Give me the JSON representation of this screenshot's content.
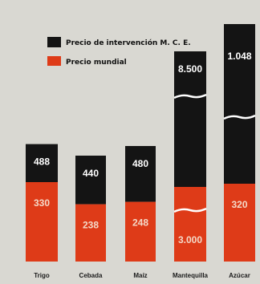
{
  "colors": {
    "background": "#d9d8d2",
    "intervention": "#141414",
    "world": "#de3b18",
    "world_label": "#f4d9c8",
    "break_line": "#ffffff"
  },
  "chart_data": {
    "type": "bar",
    "stacked": true,
    "broken_bars": [
      "Mantequilla",
      "Azúcar"
    ],
    "grid": false,
    "legend_position": "top-left",
    "categories": [
      "Trigo",
      "Cebada",
      "Maíz",
      "Mantequilla",
      "Azúcar"
    ],
    "series": [
      {
        "name": "Precio de intervención M. C. E.",
        "color": "#141414",
        "values": [
          488,
          440,
          480,
          8500,
          1048
        ]
      },
      {
        "name": "Precio mundial",
        "color": "#de3b18",
        "values": [
          330,
          238,
          248,
          3000,
          320
        ]
      }
    ],
    "data_labels": {
      "top": [
        "488",
        "440",
        "480",
        "8.500",
        "1.048"
      ],
      "bottom": [
        "330",
        "238",
        "248",
        "3.000",
        "320"
      ]
    }
  }
}
